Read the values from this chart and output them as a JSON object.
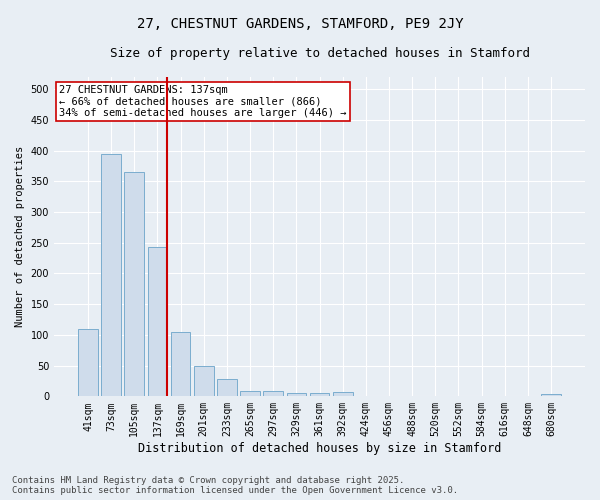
{
  "title": "27, CHESTNUT GARDENS, STAMFORD, PE9 2JY",
  "subtitle": "Size of property relative to detached houses in Stamford",
  "xlabel": "Distribution of detached houses by size in Stamford",
  "ylabel": "Number of detached properties",
  "categories": [
    "41sqm",
    "73sqm",
    "105sqm",
    "137sqm",
    "169sqm",
    "201sqm",
    "233sqm",
    "265sqm",
    "297sqm",
    "329sqm",
    "361sqm",
    "392sqm",
    "424sqm",
    "456sqm",
    "488sqm",
    "520sqm",
    "552sqm",
    "584sqm",
    "616sqm",
    "648sqm",
    "680sqm"
  ],
  "values": [
    110,
    395,
    365,
    243,
    105,
    50,
    29,
    9,
    8,
    6,
    5,
    7,
    0,
    1,
    0,
    0,
    0,
    1,
    0,
    0,
    4
  ],
  "bar_color": "#cfdceb",
  "bar_edge_color": "#7aadce",
  "marker_index": 3,
  "marker_color": "#cc0000",
  "annotation_text": "27 CHESTNUT GARDENS: 137sqm\n← 66% of detached houses are smaller (866)\n34% of semi-detached houses are larger (446) →",
  "annotation_box_color": "#ffffff",
  "annotation_box_edge": "#cc0000",
  "ylim": [
    0,
    520
  ],
  "yticks": [
    0,
    50,
    100,
    150,
    200,
    250,
    300,
    350,
    400,
    450,
    500
  ],
  "background_color": "#e8eef4",
  "grid_color": "#ffffff",
  "footer": "Contains HM Land Registry data © Crown copyright and database right 2025.\nContains public sector information licensed under the Open Government Licence v3.0.",
  "title_fontsize": 10,
  "subtitle_fontsize": 9,
  "xlabel_fontsize": 8.5,
  "ylabel_fontsize": 7.5,
  "tick_fontsize": 7,
  "annotation_fontsize": 7.5,
  "footer_fontsize": 6.5
}
